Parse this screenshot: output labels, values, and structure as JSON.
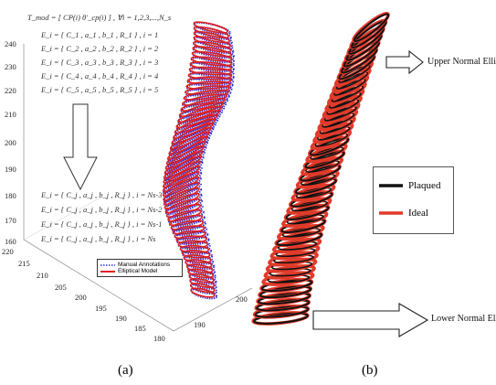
{
  "panel_a": {
    "formula_header": "T_mod = [ CP(i)   θ′_cp(i) ] , ∀i = 1,2,3,...,N_s",
    "ellipses_top": [
      "E_i = { C_1 ,  a_1 ,  b_1 ,  R_1 } ,  i = 1",
      "E_i = { C_2 ,  a_2 ,  b_2 ,  R_2 } ,  i = 2",
      "E_i = { C_3 ,  a_3 ,  b_3 ,  R_3 } ,  i = 3",
      "E_i = { C_4 ,  a_4 ,  b_4 ,  R_4 } ,  i = 4",
      "E_i = { C_5 ,  a_5 ,  b_5 ,  R_5 } ,  i = 5"
    ],
    "ellipses_bottom": [
      "E_i = { C_j ,  a_j ,  b_j ,  R_j } ,  i = Ns-3",
      "E_i = { C_j ,  a_j ,  b_j ,  R_j } ,  i = Ns-2",
      "E_i = { C_j ,  a_j ,  b_j ,  R_j } ,  i = Ns-1",
      "E_i = { C_j ,  a_j ,  b_j ,  R_j } ,  i = Ns"
    ],
    "z_ticks": [
      "240",
      "230",
      "220",
      "210",
      "200",
      "190",
      "180",
      "170",
      "160"
    ],
    "x_ticks": [
      "220",
      "215",
      "210",
      "205",
      "200",
      "195",
      "190",
      "185",
      "180"
    ],
    "y_ticks": [
      "190",
      "200"
    ],
    "legend": [
      {
        "label": "Manual Annotations",
        "color": "#3333cc"
      },
      {
        "label": "Elliptical Model",
        "color": "#e02020"
      }
    ],
    "caption": "(a)"
  },
  "panel_b": {
    "upper_label": "Upper Normal Ellipse",
    "lower_label": "Lower Normal Ellipse",
    "legend": [
      {
        "label": "Plaqued",
        "color": "#111111"
      },
      {
        "label": "Ideal",
        "color": "#e03a2a"
      }
    ],
    "caption": "(b)"
  }
}
